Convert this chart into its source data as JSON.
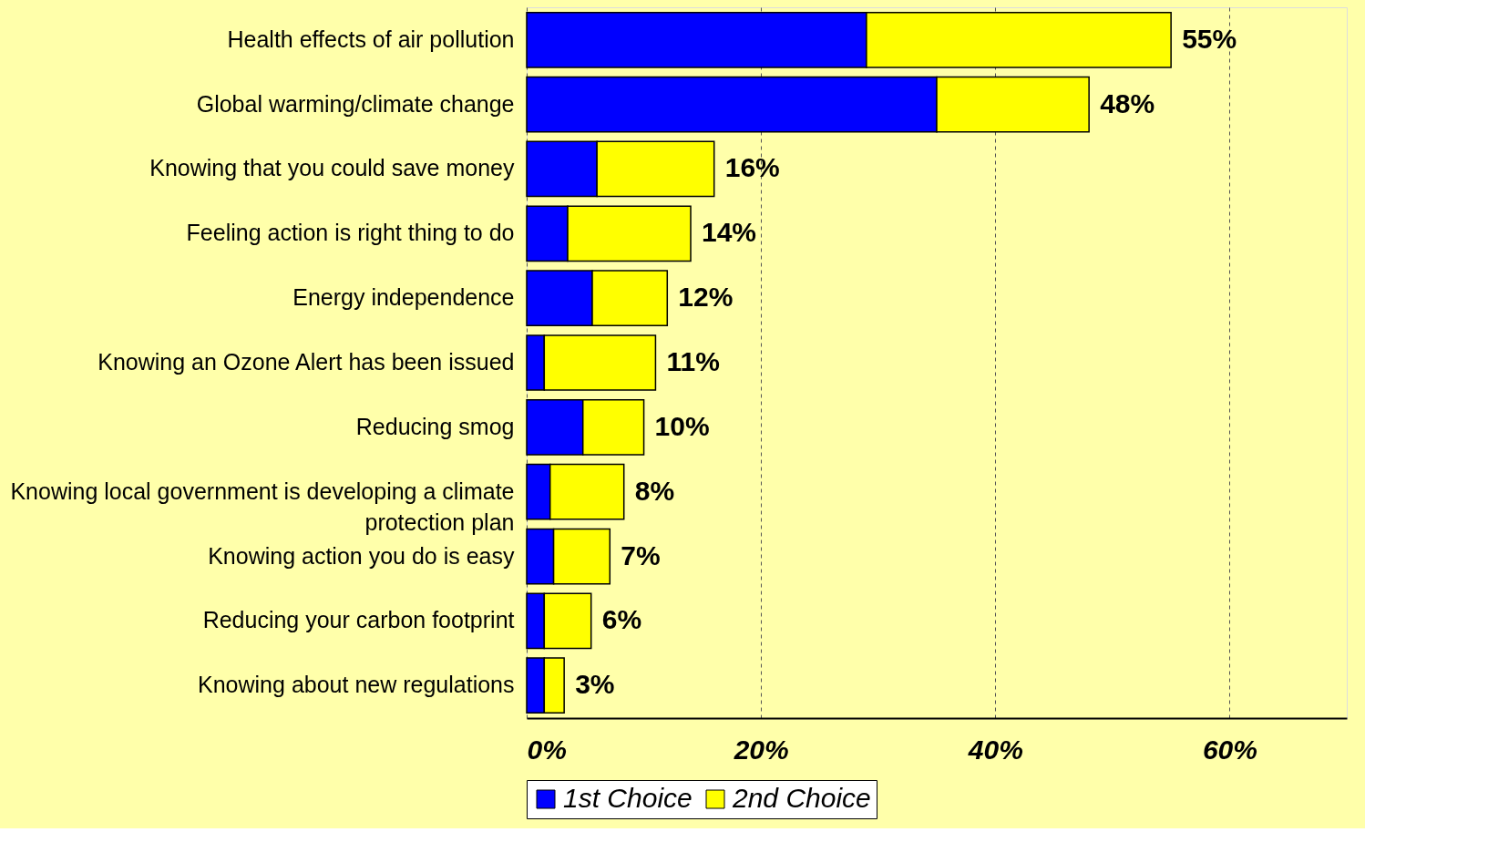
{
  "chart_data": {
    "type": "bar",
    "orientation": "horizontal",
    "stacked": true,
    "categories": [
      "Health effects of air pollution",
      "Global warming/climate change",
      "Knowing that you could save money",
      "Feeling action is right thing to do",
      "Energy independence",
      "Knowing an Ozone Alert has been issued",
      "Reducing smog",
      "Knowing local government is developing a climate protection plan",
      "Knowing action you do is easy",
      "Reducing your carbon footprint",
      "Knowing about new regulations"
    ],
    "series": [
      {
        "name": "1st Choice",
        "color": "#0000ff",
        "values": [
          29,
          35,
          6,
          3.5,
          5.6,
          1.5,
          4.8,
          2,
          2.3,
          1.5,
          1.5
        ]
      },
      {
        "name": "2nd Choice",
        "color": "#ffff00",
        "values": [
          26,
          13,
          10,
          10.5,
          6.4,
          9.5,
          5.2,
          6.3,
          4.8,
          4,
          1.7
        ]
      }
    ],
    "totals": [
      "55%",
      "48%",
      "16%",
      "14%",
      "12%",
      "11%",
      "10%",
      "8%",
      "7%",
      "6%",
      "3%"
    ],
    "xlim": [
      0,
      70
    ],
    "xticks": [
      {
        "value": 0,
        "label": "0%"
      },
      {
        "value": 20,
        "label": "20%"
      },
      {
        "value": 40,
        "label": "40%"
      },
      {
        "value": 60,
        "label": "60%"
      }
    ],
    "grid": "x",
    "legend": "bottom"
  }
}
